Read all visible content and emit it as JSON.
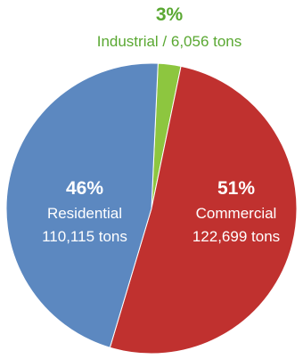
{
  "chart_data": {
    "type": "pie",
    "slices": [
      {
        "percent_label": "3%",
        "category": "Industrial",
        "amount": "6,056 tons",
        "value": 6056,
        "color": "#8dc63f",
        "text_color": "#5aa832"
      },
      {
        "percent_label": "51%",
        "category": "Commercial",
        "amount": "122,699 tons",
        "value": 122699,
        "color": "#c0312f",
        "text_color": "#ffffff"
      },
      {
        "percent_label": "46%",
        "category": "Residential",
        "amount": "110,115 tons",
        "value": 110115,
        "color": "#5c88c0",
        "text_color": "#ffffff"
      }
    ],
    "industrial_caption": "Industrial / 6,056 tons"
  }
}
